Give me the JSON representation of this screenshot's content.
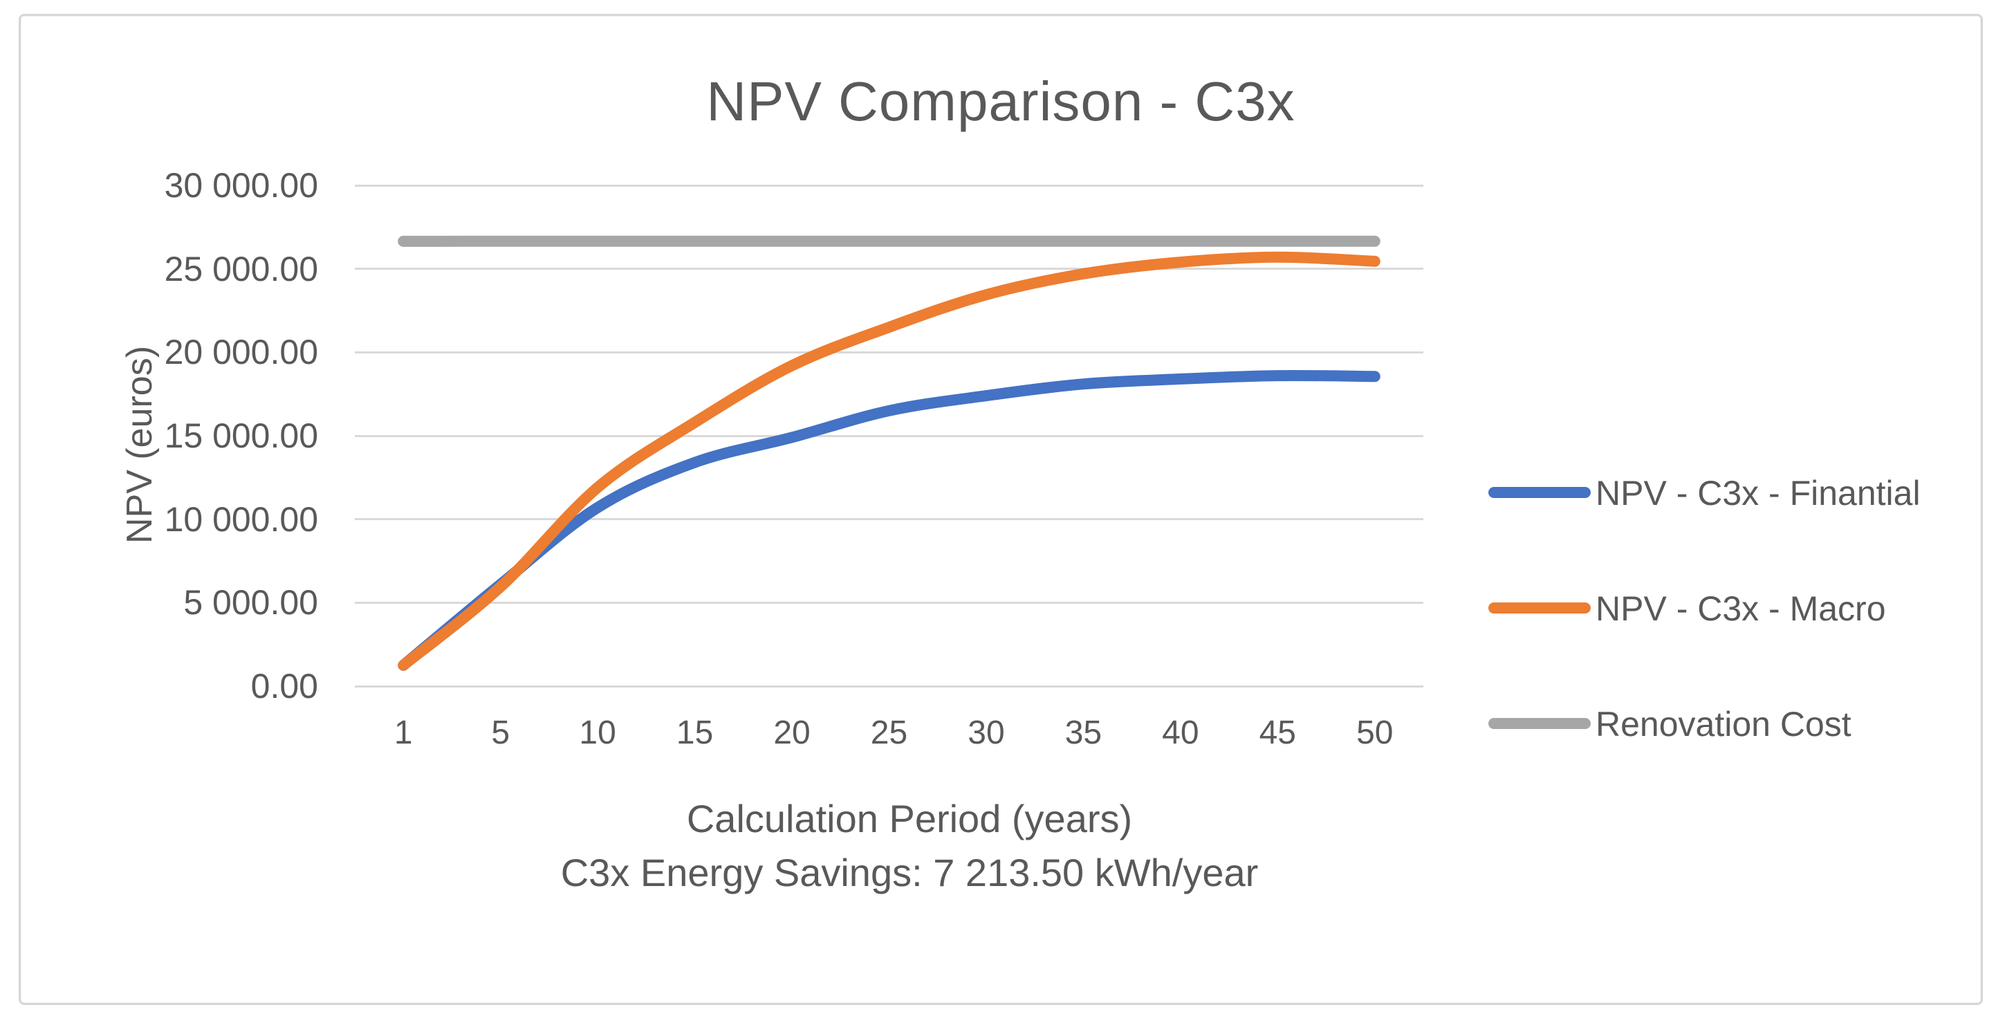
{
  "chart_data": {
    "type": "line",
    "title": "NPV Comparison - C3x",
    "ylabel": "NPV (euros)",
    "xlabel": "Calculation Period (years)",
    "xlabel_line2": "C3x Energy Savings: 7 213.50 kWh/year",
    "x_axis_type": "categorical",
    "categories": [
      1,
      5,
      10,
      15,
      20,
      25,
      30,
      35,
      40,
      45,
      50
    ],
    "ylim": [
      0,
      30000
    ],
    "grid": "horizontal",
    "legend_position": "right",
    "line_style": "smooth",
    "y_ticks": [
      {
        "value": 0,
        "label": "0.00"
      },
      {
        "value": 5000,
        "label": "5 000.00"
      },
      {
        "value": 10000,
        "label": "10 000.00"
      },
      {
        "value": 15000,
        "label": "15 000.00"
      },
      {
        "value": 20000,
        "label": "20 000.00"
      },
      {
        "value": 25000,
        "label": "25 000.00"
      },
      {
        "value": 30000,
        "label": "30 000.00"
      }
    ],
    "series": [
      {
        "name": "NPV - C3x - Finantial",
        "color": "#4472C4",
        "values": [
          1250,
          6100,
          10700,
          13400,
          14900,
          16500,
          17400,
          18100,
          18400,
          18600,
          18550
        ]
      },
      {
        "name": "NPV - C3x - Macro",
        "color": "#ED7D31",
        "values": [
          1250,
          5950,
          11900,
          15800,
          19200,
          21500,
          23450,
          24700,
          25400,
          25700,
          25450
        ]
      },
      {
        "name": "Renovation Cost",
        "color": "#A6A6A6",
        "values": [
          26650,
          26650,
          26650,
          26650,
          26650,
          26650,
          26650,
          26650,
          26650,
          26650,
          26650
        ]
      }
    ],
    "colors": {
      "text": "#595959",
      "gridline": "#D9D9D9",
      "frame_border": "#D6D6D6",
      "background": "#FFFFFF"
    }
  }
}
